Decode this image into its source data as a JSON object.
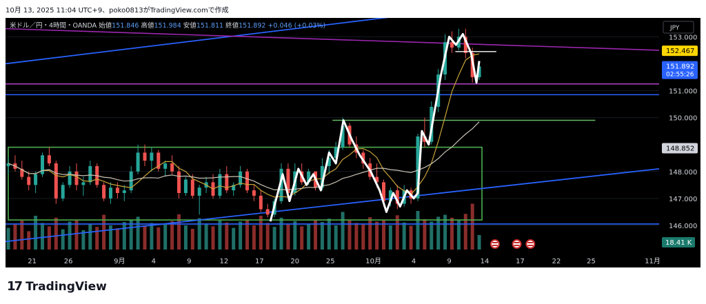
{
  "header_text": "10月 13, 2025 11:04 UTC+9、poko0813がTradingView.comで作成",
  "footer": {
    "brand": "TradingView",
    "logo_icon": "tradingview-logo-icon"
  },
  "colors": {
    "background": "#000000",
    "bull": "#26a69a",
    "bear": "#ef5350",
    "white_line": "#ffffff",
    "ma_fast": "#c8a43a",
    "ma_slow": "#c9c3b4",
    "trend_blue": "#2962ff",
    "trend_purple": "#9c27b0",
    "box_green": "#4caf50",
    "level_blue": "#2962ff",
    "level_purple": "#b044c4",
    "level_green": "#66bb6a",
    "price_yellow": "#ffd600",
    "price_blue": "#2962ff"
  },
  "chart_data": {
    "type": "candlestick",
    "symbol_line": {
      "name": "米ドル／円・4時間・OANDA",
      "open_label": "始値",
      "open": "151.846",
      "high_label": "高値",
      "high": "151.984",
      "low_label": "安値",
      "low": "151.811",
      "close_label": "終値",
      "close": "151.892",
      "change": "+0.046 (+0.03%)"
    },
    "currency": "JPY",
    "y_ticks": [
      "153.000",
      "151.000",
      "150.000",
      "148.000",
      "147.000",
      "146.000"
    ],
    "y_tick_values": [
      153,
      151,
      150,
      148,
      147,
      146
    ],
    "ylim": [
      145.0,
      153.7
    ],
    "x_ticks": [
      "21",
      "26",
      "9月",
      "4",
      "9",
      "12",
      "17",
      "20",
      "25",
      "10月",
      "4",
      "9",
      "14",
      "17",
      "22",
      "25",
      "11月"
    ],
    "price_labels": [
      {
        "value": 152.467,
        "text": "152.467",
        "color": "#ffd600",
        "text_color": "#000000"
      },
      {
        "value": 151.892,
        "text": "151.892",
        "sub": "02:55:26",
        "color": "#2962ff",
        "text_color": "#ffffff"
      },
      {
        "value": 148.852,
        "text": "148.852",
        "color": "#d1d4dc",
        "text_color": "#000000"
      }
    ],
    "volume_label": "18.41 K",
    "horizontal_levels": [
      {
        "price": 151.25,
        "color": "#b044c4"
      },
      {
        "price": 150.85,
        "color": "#2962ff"
      },
      {
        "price": 149.9,
        "color": "#66bb6a"
      },
      {
        "price": 146.05,
        "color": "#2962ff"
      }
    ],
    "white_path": [
      [
        0.384,
        146.15
      ],
      [
        0.402,
        147.9
      ],
      [
        0.412,
        146.9
      ],
      [
        0.425,
        148.1
      ],
      [
        0.437,
        147.5
      ],
      [
        0.447,
        147.9
      ],
      [
        0.458,
        147.3
      ],
      [
        0.47,
        148.7
      ],
      [
        0.48,
        148.3
      ],
      [
        0.491,
        149.9
      ],
      [
        0.503,
        149.2
      ],
      [
        0.515,
        148.6
      ],
      [
        0.531,
        148.0
      ],
      [
        0.544,
        147.3
      ],
      [
        0.554,
        146.5
      ],
      [
        0.564,
        147.2
      ],
      [
        0.574,
        146.7
      ],
      [
        0.584,
        147.3
      ],
      [
        0.594,
        147.0
      ],
      [
        0.6,
        147.2
      ],
      [
        0.606,
        149.5
      ],
      [
        0.616,
        149.0
      ],
      [
        0.634,
        151.6
      ],
      [
        0.646,
        153.0
      ],
      [
        0.656,
        152.7
      ],
      [
        0.666,
        153.1
      ],
      [
        0.678,
        152.4
      ],
      [
        0.686,
        151.3
      ],
      [
        0.69,
        152.1
      ]
    ],
    "candles_ohlc": [
      [
        0.0,
        148.2,
        148.5,
        147.9,
        148.3
      ],
      [
        0.01,
        148.3,
        148.6,
        148.0,
        148.1
      ],
      [
        0.02,
        148.1,
        148.4,
        147.7,
        147.8
      ],
      [
        0.03,
        147.8,
        148.0,
        147.3,
        147.5
      ],
      [
        0.04,
        147.5,
        148.0,
        147.2,
        147.9
      ],
      [
        0.05,
        147.9,
        148.7,
        147.8,
        148.6
      ],
      [
        0.06,
        148.6,
        148.9,
        148.2,
        148.3
      ],
      [
        0.07,
        148.3,
        148.4,
        146.8,
        147.0
      ],
      [
        0.08,
        147.0,
        147.6,
        146.9,
        147.5
      ],
      [
        0.09,
        147.5,
        148.2,
        147.4,
        148.0
      ],
      [
        0.1,
        148.0,
        148.3,
        147.3,
        147.5
      ],
      [
        0.11,
        147.5,
        147.8,
        147.1,
        147.6
      ],
      [
        0.12,
        147.6,
        148.4,
        147.5,
        148.2
      ],
      [
        0.13,
        148.2,
        148.3,
        147.4,
        147.5
      ],
      [
        0.14,
        147.5,
        147.6,
        146.9,
        147.0
      ],
      [
        0.15,
        147.0,
        147.6,
        146.8,
        147.4
      ],
      [
        0.16,
        147.4,
        147.6,
        147.0,
        147.2
      ],
      [
        0.17,
        147.2,
        147.5,
        146.9,
        147.3
      ],
      [
        0.18,
        147.3,
        148.2,
        147.2,
        148.0
      ],
      [
        0.19,
        148.0,
        149.0,
        147.9,
        148.7
      ],
      [
        0.2,
        148.7,
        149.0,
        148.2,
        148.4
      ],
      [
        0.21,
        148.4,
        148.9,
        148.0,
        148.7
      ],
      [
        0.22,
        148.7,
        148.8,
        148.0,
        148.1
      ],
      [
        0.23,
        148.1,
        148.4,
        147.8,
        148.3
      ],
      [
        0.24,
        148.3,
        148.6,
        147.9,
        148.0
      ],
      [
        0.25,
        148.0,
        148.2,
        147.0,
        147.2
      ],
      [
        0.26,
        147.2,
        147.8,
        147.1,
        147.7
      ],
      [
        0.27,
        147.7,
        147.9,
        147.0,
        147.1
      ],
      [
        0.28,
        147.1,
        147.5,
        146.4,
        147.4
      ],
      [
        0.29,
        147.4,
        147.8,
        147.2,
        147.6
      ],
      [
        0.3,
        147.6,
        147.9,
        147.0,
        147.1
      ],
      [
        0.31,
        147.1,
        148.1,
        147.0,
        147.9
      ],
      [
        0.32,
        147.9,
        148.2,
        147.2,
        147.3
      ],
      [
        0.33,
        147.3,
        147.6,
        147.1,
        147.5
      ],
      [
        0.34,
        147.5,
        148.2,
        147.4,
        148.0
      ],
      [
        0.35,
        148.0,
        148.1,
        147.2,
        147.3
      ],
      [
        0.36,
        147.3,
        147.5,
        146.9,
        147.1
      ],
      [
        0.37,
        147.1,
        147.3,
        146.5,
        146.6
      ],
      [
        0.38,
        146.6,
        146.8,
        146.3,
        146.4
      ],
      [
        0.39,
        146.4,
        147.0,
        146.3,
        146.9
      ],
      [
        0.4,
        146.9,
        148.3,
        146.8,
        148.1
      ],
      [
        0.41,
        148.1,
        148.3,
        147.0,
        147.2
      ],
      [
        0.42,
        147.2,
        148.3,
        147.1,
        148.0
      ],
      [
        0.43,
        148.0,
        148.3,
        147.5,
        147.6
      ],
      [
        0.44,
        147.6,
        148.1,
        147.5,
        148.0
      ],
      [
        0.45,
        148.0,
        148.0,
        147.3,
        147.4
      ],
      [
        0.46,
        147.4,
        148.5,
        147.3,
        148.2
      ],
      [
        0.47,
        148.2,
        148.8,
        147.9,
        148.5
      ],
      [
        0.48,
        148.5,
        149.1,
        148.3,
        148.9
      ],
      [
        0.49,
        148.9,
        150.0,
        148.8,
        149.7
      ],
      [
        0.5,
        149.7,
        149.8,
        148.9,
        149.0
      ],
      [
        0.51,
        149.0,
        149.3,
        148.5,
        148.7
      ],
      [
        0.52,
        148.7,
        148.8,
        148.1,
        148.3
      ],
      [
        0.53,
        148.3,
        148.5,
        147.7,
        147.8
      ],
      [
        0.54,
        147.8,
        148.3,
        147.4,
        147.6
      ],
      [
        0.55,
        147.6,
        147.7,
        146.7,
        146.9
      ],
      [
        0.56,
        146.9,
        147.4,
        146.7,
        147.3
      ],
      [
        0.57,
        147.3,
        147.5,
        146.6,
        146.8
      ],
      [
        0.58,
        146.8,
        147.5,
        146.7,
        147.3
      ],
      [
        0.59,
        147.3,
        147.4,
        146.8,
        147.0
      ],
      [
        0.6,
        147.0,
        149.4,
        146.9,
        149.3
      ],
      [
        0.61,
        149.3,
        150.0,
        148.9,
        149.1
      ],
      [
        0.62,
        149.1,
        150.6,
        149.0,
        150.4
      ],
      [
        0.63,
        150.4,
        151.8,
        150.2,
        151.6
      ],
      [
        0.64,
        151.6,
        153.1,
        151.4,
        152.8
      ],
      [
        0.65,
        152.8,
        153.2,
        152.4,
        152.6
      ],
      [
        0.66,
        152.6,
        153.3,
        152.5,
        153.0
      ],
      [
        0.67,
        153.0,
        153.3,
        152.2,
        152.4
      ],
      [
        0.68,
        152.4,
        152.6,
        151.3,
        151.5
      ],
      [
        0.69,
        151.5,
        152.0,
        151.4,
        151.9
      ]
    ],
    "volumes": [
      0.45,
      0.52,
      0.6,
      0.38,
      0.7,
      0.55,
      0.48,
      0.66,
      0.42,
      0.58,
      0.62,
      0.4,
      0.53,
      0.47,
      0.72,
      0.5,
      0.44,
      0.57,
      0.61,
      0.68,
      0.49,
      0.55,
      0.46,
      0.52,
      0.59,
      0.73,
      0.5,
      0.43,
      0.65,
      0.54,
      0.48,
      0.6,
      0.56,
      0.45,
      0.58,
      0.62,
      0.5,
      0.7,
      0.55,
      0.47,
      0.66,
      0.52,
      0.59,
      0.48,
      0.53,
      0.61,
      0.57,
      0.64,
      0.5,
      0.78,
      0.6,
      0.55,
      0.52,
      0.67,
      0.58,
      0.62,
      0.5,
      0.71,
      0.56,
      0.49,
      0.8,
      0.63,
      0.58,
      0.68,
      0.72,
      0.66,
      0.6,
      0.74,
      0.95,
      0.3
    ]
  }
}
